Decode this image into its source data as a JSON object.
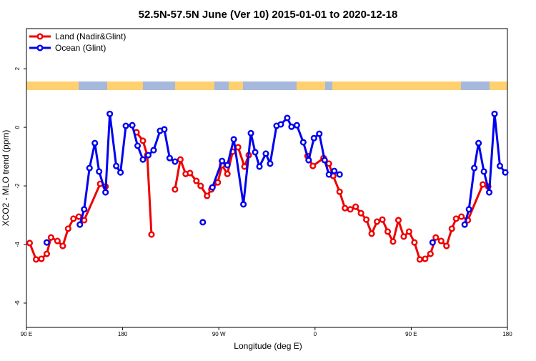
{
  "chart_data": {
    "type": "line",
    "title": "52.5N-57.5N June (Ver 10)   2015-01-01 to 2020-12-18",
    "xlabel": "Longitude (deg E)",
    "ylabel": "XCO2 - MLO trend (ppm)",
    "xlim": [
      90,
      540
    ],
    "ylim": [
      -6.83,
      3.37
    ],
    "xticks": [
      {
        "value": 90,
        "label": "90 E"
      },
      180,
      {
        "value": 270,
        "label": "90 W"
      },
      {
        "value": 360,
        "label": "0"
      },
      {
        "value": 450,
        "label": "90 E"
      },
      {
        "value": 540,
        "label": "180"
      }
    ],
    "yticks": [
      -6,
      -4,
      -2,
      0,
      2
    ],
    "legend": "top-left",
    "series": [
      {
        "name": "Land (Nadir&Glint)",
        "color": "#ee0000",
        "x": [
          93,
          99,
          104,
          109,
          113,
          119,
          124,
          129,
          134,
          139,
          144,
          159,
          164,
          178,
          193,
          199,
          203,
          207,
          218,
          229,
          234,
          239,
          243,
          249,
          253,
          259,
          263,
          269,
          273,
          278,
          283,
          288,
          294,
          298,
          325,
          353,
          358,
          368,
          373,
          377,
          383,
          388,
          393,
          398,
          403,
          408,
          413,
          418,
          423,
          428,
          433,
          438,
          443,
          448,
          453,
          458,
          463,
          468,
          473,
          478,
          483,
          488,
          492,
          497,
          503,
          517,
          522
        ],
        "values": [
          -3.95,
          -4.51,
          -4.49,
          -4.32,
          -3.76,
          -3.88,
          -4.05,
          -3.46,
          -3.12,
          -3.05,
          -3.17,
          -1.93,
          -2.02,
          null,
          -0.17,
          -0.46,
          -0.95,
          -3.66,
          null,
          -2.12,
          -1.1,
          -1.59,
          -1.56,
          -1.83,
          -2.0,
          -2.34,
          -2.12,
          -1.88,
          -1.29,
          -1.59,
          -0.83,
          -0.68,
          -1.34,
          -0.95,
          null,
          -0.98,
          -1.32,
          -1.05,
          -1.24,
          -1.66,
          -2.2,
          -2.76,
          -2.8,
          -2.71,
          -2.93,
          -3.15,
          -3.63,
          -3.22,
          -3.15,
          -3.56,
          -3.9,
          -3.17,
          -3.73,
          -3.56,
          -3.93,
          -4.51,
          -4.49,
          -4.32,
          -3.76,
          -3.88,
          -4.05,
          -3.46,
          -3.12,
          -3.05,
          -3.17,
          -1.95,
          -2.02
        ]
      },
      {
        "name": "Ocean (Glint)",
        "color": "#0000ee",
        "x": [
          109,
          125,
          140,
          144,
          149,
          154,
          158,
          164,
          168,
          174,
          178,
          183,
          189,
          194,
          199,
          204,
          209,
          215,
          219,
          224,
          229,
          242,
          255,
          260,
          264,
          273,
          278,
          284,
          293,
          300,
          304,
          308,
          314,
          318,
          324,
          328,
          334,
          338,
          343,
          349,
          354,
          359,
          364,
          369,
          373,
          378,
          383,
          426,
          470,
          485,
          500,
          504,
          509,
          513,
          518,
          523,
          528,
          533,
          538
        ],
        "values": [
          -3.93,
          null,
          -3.32,
          -2.8,
          -1.39,
          -0.54,
          -1.51,
          -2.22,
          0.46,
          -1.32,
          -1.54,
          0.05,
          0.07,
          -0.63,
          -1.1,
          -0.95,
          -0.78,
          -0.12,
          -0.07,
          -1.05,
          -1.17,
          null,
          -3.24,
          null,
          -2.05,
          -1.15,
          -1.29,
          -0.41,
          -2.63,
          -0.2,
          -0.85,
          -1.34,
          -0.9,
          -1.24,
          0.05,
          0.1,
          0.32,
          0.02,
          0.07,
          -0.51,
          -1.12,
          -0.37,
          -0.22,
          -1.12,
          -1.61,
          -1.49,
          -1.61,
          null,
          -3.93,
          null,
          -3.32,
          -2.8,
          -1.39,
          -0.54,
          -1.51,
          -2.22,
          0.46,
          -1.32,
          -1.54
        ]
      }
    ]
  }
}
